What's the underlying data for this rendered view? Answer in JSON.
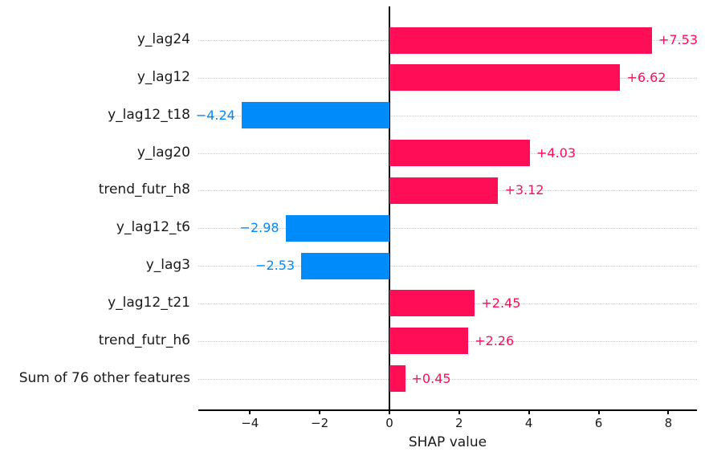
{
  "chart_data": {
    "type": "bar",
    "orientation": "horizontal",
    "title": "",
    "xlabel": "SHAP value",
    "ylabel": "",
    "categories": [
      "y_lag24",
      "y_lag12",
      "y_lag12_t18",
      "y_lag20",
      "trend_futr_h8",
      "y_lag12_t6",
      "y_lag3",
      "y_lag12_t21",
      "trend_futr_h6",
      "Sum of 76 other features"
    ],
    "values": [
      7.53,
      6.62,
      -4.24,
      4.03,
      3.12,
      -2.98,
      -2.53,
      2.45,
      2.26,
      0.45
    ],
    "bar_labels": [
      "+7.53",
      "+6.62",
      "−4.24",
      "+4.03",
      "+3.12",
      "−2.98",
      "−2.53",
      "+2.45",
      "+2.26",
      "+0.45"
    ],
    "xticks": [
      -4,
      -2,
      0,
      2,
      4,
      6,
      8
    ],
    "xtick_labels": [
      "−4",
      "−2",
      "0",
      "2",
      "4",
      "6",
      "8"
    ],
    "xlim": [
      -5.48,
      8.82
    ],
    "grid": "horizontal-dotted",
    "legend": null,
    "colors": {
      "positive": "#ff0d57",
      "negative": "#008bfb",
      "axis": "#000000",
      "grid": "#c9c9c9",
      "background": "#ffffff"
    }
  }
}
